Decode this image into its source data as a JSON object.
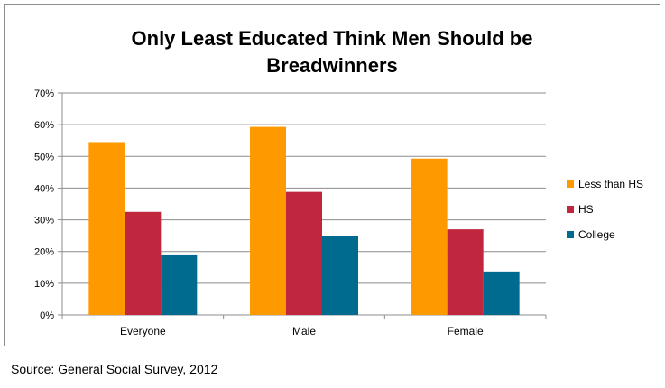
{
  "chart_data": {
    "type": "bar",
    "title_lines": [
      "Only Least Educated Think Men Should be",
      "Breadwinners"
    ],
    "categories": [
      "Everyone",
      "Male",
      "Female"
    ],
    "series": [
      {
        "name": "Less than HS",
        "color": "#ff9900",
        "values": [
          54.5,
          59.3,
          49.3
        ]
      },
      {
        "name": "HS",
        "color": "#c0273f",
        "values": [
          32.5,
          38.8,
          27.0
        ]
      },
      {
        "name": "College",
        "color": "#006b8f",
        "values": [
          18.8,
          24.8,
          13.7
        ]
      }
    ],
    "ylim": [
      0,
      70
    ],
    "yticks": [
      "0%",
      "10%",
      "20%",
      "30%",
      "40%",
      "50%",
      "60%",
      "70%"
    ],
    "grid": true,
    "legend_position": "right"
  },
  "source_text": "Source: General Social Survey, 2012"
}
